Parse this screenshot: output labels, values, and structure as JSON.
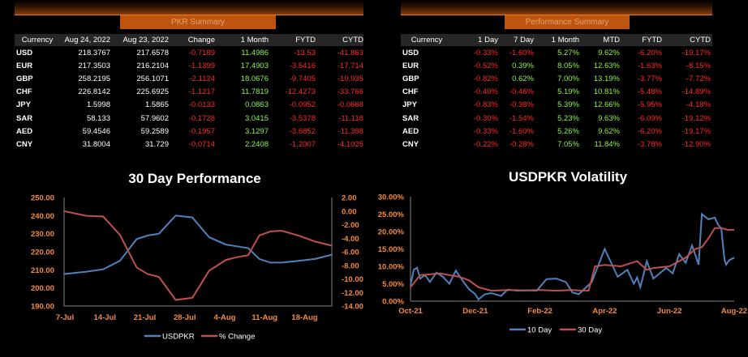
{
  "pkr_summary": {
    "title": "PKR Summary",
    "columns": [
      "Currency",
      "Aug 24, 2022",
      "Aug 23, 2022",
      "Change",
      "1 Month",
      "FYTD",
      "CYTD"
    ],
    "rows": [
      [
        "USD",
        "218.3767",
        "217.6578",
        "-0.7189",
        "11.4986",
        "-13.53",
        "-41.863"
      ],
      [
        "EUR",
        "217.3503",
        "216.2104",
        "-1.1399",
        "17.4903",
        "-3.5416",
        "-17.714"
      ],
      [
        "GBP",
        "258.2195",
        "256.1071",
        "-2.1124",
        "18.0676",
        "-9.7405",
        "-19.935"
      ],
      [
        "CHF",
        "226.8142",
        "225.6925",
        "-1.1217",
        "11.7819",
        "-12.4273",
        "-33.766"
      ],
      [
        "JPY",
        "1.5998",
        "1.5865",
        "-0.0133",
        "0.0863",
        "-0.0952",
        "-0.0668"
      ],
      [
        "SAR",
        "58.133",
        "57.9602",
        "-0.1728",
        "3.0415",
        "-3.5378",
        "-11.118"
      ],
      [
        "AED",
        "59.4546",
        "59.2589",
        "-0.1957",
        "3.1297",
        "-3.6852",
        "-11.398"
      ],
      [
        "CNY",
        "31.8004",
        "31.729",
        "-0.0714",
        "2.2408",
        "-1.2007",
        "-4.1025"
      ]
    ]
  },
  "performance_summary": {
    "title": "Performance Summary",
    "columns": [
      "Currency",
      "1 Day",
      "7 Day",
      "1 Month",
      "MTD",
      "FYTD",
      "CYTD"
    ],
    "rows": [
      [
        "USD",
        "-0.33%",
        "-1.60%",
        "5.27%",
        "9.62%",
        "-6.20%",
        "-19.17%"
      ],
      [
        "EUR",
        "-0.52%",
        "0.39%",
        "8.05%",
        "12.63%",
        "-1.63%",
        "-8.15%"
      ],
      [
        "GBP",
        "-0.82%",
        "0.62%",
        "7.00%",
        "13.19%",
        "-3.77%",
        "-7.72%"
      ],
      [
        "CHF",
        "-0.49%",
        "-0.46%",
        "5.19%",
        "10.81%",
        "-5.48%",
        "-14.89%"
      ],
      [
        "JPY",
        "-0.83%",
        "-0.38%",
        "5.39%",
        "12.66%",
        "-5.95%",
        "-4.18%"
      ],
      [
        "SAR",
        "-0.30%",
        "-1.54%",
        "5.23%",
        "9.63%",
        "-6.09%",
        "-19.12%"
      ],
      [
        "AED",
        "-0.33%",
        "-1.60%",
        "5.26%",
        "9.62%",
        "-6.20%",
        "-19.17%"
      ],
      [
        "CNY",
        "-0.22%",
        "-0.28%",
        "7.05%",
        "11.84%",
        "-3.78%",
        "-12.90%"
      ]
    ]
  },
  "colors": {
    "title_orange": "#f5893a",
    "axis_orange": "#f5893a",
    "series_blue": "#4f81bd",
    "series_red": "#c0504d",
    "neg": "#ff2424",
    "pos": "#8ff24a"
  },
  "chart_data": [
    {
      "type": "line",
      "title": "30 Day Performance",
      "x_ticks": [
        "7-Jul",
        "14-Jul",
        "21-Jul",
        "28-Jul",
        "4-Aug",
        "11-Aug",
        "18-Aug"
      ],
      "x_range": [
        0,
        48
      ],
      "y_left": {
        "min": 190,
        "max": 250,
        "step": 10,
        "format": "0.00"
      },
      "y_right": {
        "min": -14,
        "max": 2,
        "step": 2,
        "format": "0.00"
      },
      "series": [
        {
          "name": "USDPKR",
          "axis": "left",
          "color": "#4f81bd",
          "x": [
            0,
            4,
            7,
            10,
            13,
            15,
            17,
            20,
            23,
            26,
            29,
            31,
            33,
            35,
            37,
            39,
            42,
            45,
            48
          ],
          "y": [
            207.7,
            209,
            210.3,
            215,
            227,
            229,
            230,
            240,
            239,
            228,
            224,
            223,
            222,
            216,
            214,
            214,
            215,
            216,
            218.4
          ]
        },
        {
          "name": "% Change",
          "axis": "right",
          "color": "#c0504d",
          "x": [
            0,
            4,
            7,
            10,
            13,
            15,
            17,
            20,
            23,
            26,
            29,
            31,
            33,
            35,
            37,
            39,
            42,
            45,
            48
          ],
          "y": [
            0,
            -0.7,
            -0.8,
            -3.5,
            -8.3,
            -9.3,
            -9.7,
            -13.1,
            -12.8,
            -8.8,
            -7.2,
            -6.8,
            -6.5,
            -3.6,
            -3,
            -2.9,
            -3.6,
            -4.5,
            -5.1
          ]
        }
      ]
    },
    {
      "type": "line",
      "title": "USDPKR Volatility",
      "x_ticks": [
        "Oct-21",
        "Dec-21",
        "Feb-22",
        "Apr-22",
        "Jun-22",
        "Aug-22"
      ],
      "x_range": [
        0,
        10
      ],
      "y": {
        "min": 0,
        "max": 30,
        "step": 5,
        "format": "0.00%"
      },
      "series": [
        {
          "name": "10 Day",
          "color": "#4f81bd",
          "x": [
            0,
            0.1,
            0.2,
            0.3,
            0.45,
            0.6,
            0.8,
            1.0,
            1.2,
            1.4,
            1.6,
            1.8,
            2.0,
            2.1,
            2.3,
            2.5,
            2.8,
            3.0,
            3.3,
            3.6,
            3.9,
            4.2,
            4.5,
            4.8,
            5.0,
            5.2,
            5.6,
            6.0,
            6.4,
            6.7,
            6.9,
            7.0,
            7.1,
            7.3,
            7.5,
            7.7,
            7.9,
            8.1,
            8.3,
            8.5,
            8.7,
            8.9,
            9.0,
            9.2,
            9.4,
            9.5,
            9.6,
            9.7,
            9.75,
            9.85,
            10.0
          ],
          "y": [
            4.5,
            9.0,
            9.6,
            6.5,
            7.5,
            5.5,
            8.2,
            7.0,
            5.0,
            8.8,
            6.0,
            3.5,
            2.0,
            0.5,
            2.0,
            2.3,
            1.5,
            3.3,
            3.0,
            3.1,
            3.0,
            6.3,
            6.5,
            5.5,
            2.5,
            2.0,
            5.5,
            15.0,
            7.0,
            9.0,
            5.0,
            6.8,
            4.0,
            11.5,
            6.5,
            8.0,
            9.5,
            8.0,
            13.5,
            11.0,
            16.0,
            10.5,
            25.0,
            23.5,
            24.0,
            22.0,
            21.0,
            12.0,
            10.5,
            11.8,
            12.5
          ]
        },
        {
          "name": "30 Day",
          "color": "#c0504d",
          "x": [
            0,
            0.3,
            0.6,
            0.9,
            1.2,
            1.5,
            1.8,
            2.1,
            2.5,
            3.0,
            3.5,
            4.0,
            4.5,
            5.0,
            5.3,
            5.5,
            5.7,
            6.0,
            6.5,
            7.0,
            7.3,
            7.5,
            8.0,
            8.5,
            8.8,
            9.0,
            9.2,
            9.4,
            9.6,
            9.8,
            10.0
          ],
          "y": [
            4.0,
            7.5,
            7.7,
            8.0,
            7.5,
            7.0,
            6.0,
            4.0,
            3.0,
            3.2,
            3.1,
            3.2,
            3.0,
            3.2,
            3.0,
            3.0,
            10.0,
            10.4,
            10.0,
            11.5,
            9.0,
            9.5,
            10.0,
            12.5,
            15.0,
            15.5,
            18.0,
            21.0,
            21.0,
            20.5,
            20.5
          ]
        }
      ]
    }
  ]
}
